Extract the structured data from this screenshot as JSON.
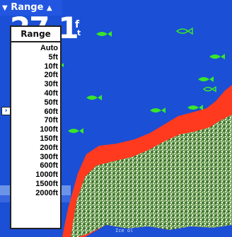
{
  "title_bar": {
    "label": "Range",
    "left_arrow": "▼",
    "right_arrow": "▲"
  },
  "depth_readout": {
    "value": "27.1",
    "unit_top": "f",
    "unit_bottom": "t"
  },
  "range_menu": {
    "header": "Range",
    "options": [
      "Auto",
      "5ft",
      "10ft",
      "20ft",
      "30ft",
      "40ft",
      "50ft",
      "60ft",
      "70ft",
      "100ft",
      "150ft",
      "200ft",
      "300ft",
      "600ft",
      "1000ft",
      "1500ft",
      "2000ft"
    ]
  },
  "menu_pointer_icon": "arrow-right-icon",
  "bottom_label": "Ice ol",
  "colors": {
    "water": "#1a4fd6",
    "bottom_return": "#ff3a1e",
    "fish": "#39e62a",
    "clutter": "#cfe7c7",
    "menu_bg": "#ffffff"
  },
  "fish_targets": 8
}
